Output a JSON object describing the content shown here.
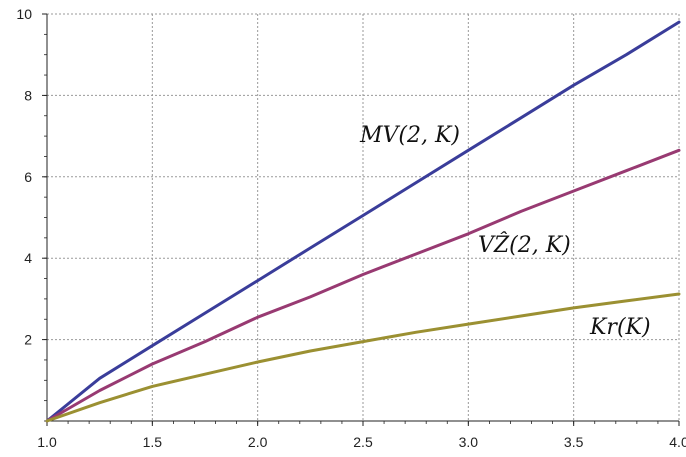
{
  "chart_data": {
    "type": "line",
    "xlim": [
      1.0,
      4.0
    ],
    "ylim": [
      0,
      10
    ],
    "grid": true,
    "x_ticks": [
      "1.0",
      "1.5",
      "2.0",
      "2.5",
      "3.0",
      "3.5",
      "4.0"
    ],
    "y_ticks": [
      "2",
      "4",
      "6",
      "8",
      "10"
    ],
    "series": [
      {
        "name": "MV(2,K)",
        "color": "#3a3d9a",
        "x": [
          1.0,
          1.25,
          1.5,
          1.75,
          2.0,
          2.25,
          2.5,
          2.75,
          3.0,
          3.25,
          3.5,
          3.75,
          4.0
        ],
        "y": [
          0.0,
          1.05,
          1.85,
          2.65,
          3.45,
          4.25,
          5.05,
          5.85,
          6.65,
          7.45,
          8.25,
          9.0,
          9.8
        ]
      },
      {
        "name": "VẐ(2,K)",
        "color": "#983a72",
        "x": [
          1.0,
          1.25,
          1.5,
          1.75,
          2.0,
          2.25,
          2.5,
          2.75,
          3.0,
          3.25,
          3.5,
          3.75,
          4.0
        ],
        "y": [
          0.0,
          0.75,
          1.4,
          1.95,
          2.55,
          3.05,
          3.6,
          4.1,
          4.6,
          5.15,
          5.65,
          6.15,
          6.65
        ]
      },
      {
        "name": "Kr(K)",
        "color": "#9b9032",
        "x": [
          1.0,
          1.25,
          1.5,
          1.75,
          2.0,
          2.25,
          2.5,
          2.75,
          3.0,
          3.25,
          3.5,
          3.75,
          4.0
        ],
        "y": [
          0.0,
          0.45,
          0.85,
          1.15,
          1.45,
          1.72,
          1.95,
          2.18,
          2.38,
          2.58,
          2.78,
          2.95,
          3.12
        ]
      }
    ],
    "labels": {
      "mv": "MV(2, K)",
      "vz": "VẐ(2, K)",
      "kr": "Kr(K)"
    }
  }
}
